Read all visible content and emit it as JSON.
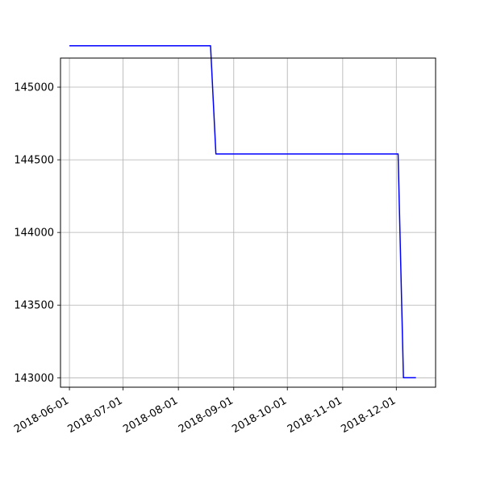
{
  "chart_data": {
    "type": "line",
    "title": "",
    "xlabel": "",
    "ylabel": "",
    "grid": true,
    "x_ticks": [
      "2018-06-01",
      "2018-07-01",
      "2018-08-01",
      "2018-09-01",
      "2018-10-01",
      "2018-11-01",
      "2018-12-01"
    ],
    "y_ticks": [
      143000,
      143500,
      144000,
      144500,
      145000
    ],
    "xlim": [
      "2018-05-27",
      "2018-12-23"
    ],
    "ylim": [
      142935,
      145200
    ],
    "series": [
      {
        "color": "#0000ff",
        "x": [
          "2018-06-01",
          "2018-08-19",
          "2018-08-22",
          "2018-12-02",
          "2018-12-05",
          "2018-12-12"
        ],
        "y": [
          145285,
          145285,
          144540,
          144540,
          143000,
          143000
        ]
      }
    ]
  }
}
